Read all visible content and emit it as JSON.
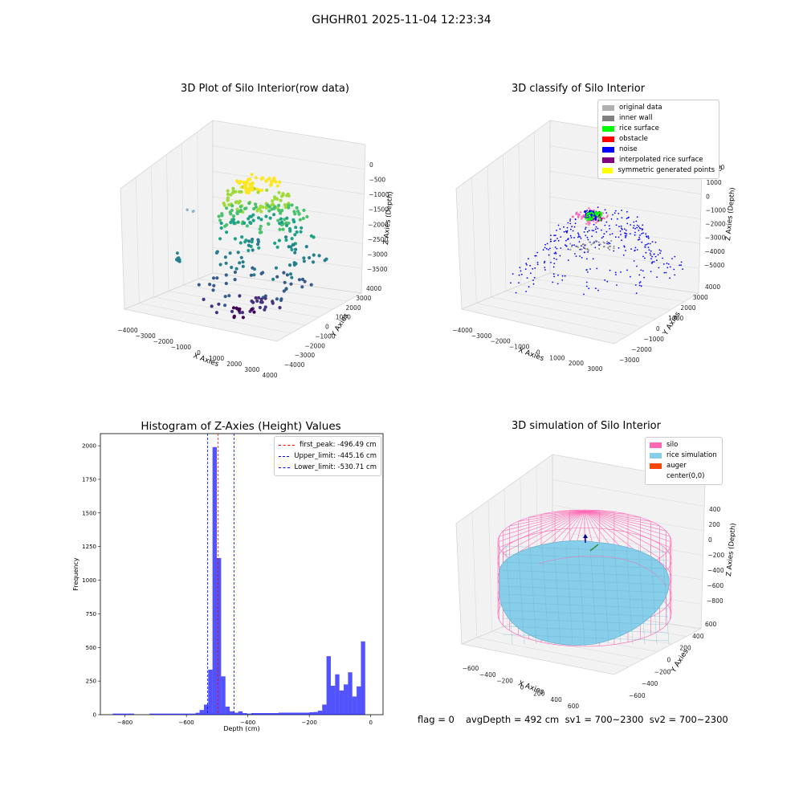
{
  "suptitle": "GHGHR01 2025-11-04 12:23:34",
  "chart_data": [
    {
      "type": "scatter",
      "title": "3D Plot of Silo Interior(row data)",
      "xlabel": "X Axies",
      "ylabel": "Y Axies",
      "zlabel": "Z Axies (Depth)",
      "x_ticks": [
        "−4000",
        "−3000",
        "−2000",
        "−1000",
        "0",
        "1000",
        "2000",
        "3000",
        "4000"
      ],
      "y_ticks": [
        "−4000",
        "−3000",
        "−2000",
        "−1000",
        "0",
        "1000",
        "2000",
        "3000",
        "4000"
      ],
      "z_ticks": [
        "0",
        "−500",
        "−1000",
        "−1500",
        "−2000",
        "−2500",
        "−3000",
        "−3500"
      ],
      "colormap": "viridis"
    },
    {
      "type": "scatter",
      "title": "3D classify of Silo Interior",
      "xlabel": "X Axies",
      "ylabel": "Y Axies",
      "zlabel": "Z Axies (Depth)",
      "x_ticks": [
        "−4000",
        "−3000",
        "−2000",
        "−1000",
        "0",
        "1000",
        "2000",
        "3000"
      ],
      "y_ticks": [
        "−3000",
        "−2000",
        "−1000",
        "0",
        "1000",
        "2000",
        "3000",
        "4000"
      ],
      "z_ticks": [
        "2000",
        "1000",
        "0",
        "−1000",
        "−2000",
        "−3000",
        "−4000",
        "−5000"
      ],
      "z_partial_tick": "000",
      "legend": [
        {
          "label": "original data",
          "color": "#b0b0b0"
        },
        {
          "label": "inner wall",
          "color": "#808080"
        },
        {
          "label": "rice surface",
          "color": "#00ff00"
        },
        {
          "label": "obstacle",
          "color": "#ff0000"
        },
        {
          "label": "noise",
          "color": "#0000ff"
        },
        {
          "label": "interpolated rice surface",
          "color": "#800080"
        },
        {
          "label": "symmetric generated points",
          "color": "#ffff00"
        }
      ]
    },
    {
      "type": "bar",
      "title": "Histogram of Z-Axies (Height) Values",
      "xlabel": "Depth (cm)",
      "ylabel": "Frequency",
      "xlim": [
        -880,
        40
      ],
      "ylim": [
        0,
        2090
      ],
      "x_ticks": [
        -800,
        -600,
        -400,
        -200,
        0
      ],
      "x_tick_labels": [
        "−800",
        "−600",
        "−400",
        "−200",
        "0"
      ],
      "y_ticks": [
        0,
        250,
        500,
        750,
        1000,
        1250,
        1500,
        1750,
        2000
      ],
      "bar_color": "#0000ff",
      "bins": [
        {
          "x0": -840,
          "x1": -770,
          "value": 8
        },
        {
          "x0": -720,
          "x1": -570,
          "value": 8
        },
        {
          "x0": -570,
          "x1": -557,
          "value": 14
        },
        {
          "x0": -557,
          "x1": -543,
          "value": 35
        },
        {
          "x0": -543,
          "x1": -529,
          "value": 75
        },
        {
          "x0": -529,
          "x1": -515,
          "value": 335
        },
        {
          "x0": -515,
          "x1": -501,
          "value": 1990
        },
        {
          "x0": -501,
          "x1": -487,
          "value": 1165
        },
        {
          "x0": -487,
          "x1": -473,
          "value": 285
        },
        {
          "x0": -473,
          "x1": -459,
          "value": 60
        },
        {
          "x0": -459,
          "x1": -445,
          "value": 25
        },
        {
          "x0": -445,
          "x1": -431,
          "value": 15
        },
        {
          "x0": -431,
          "x1": -417,
          "value": 25
        },
        {
          "x0": -417,
          "x1": -403,
          "value": 12
        },
        {
          "x0": -403,
          "x1": -389,
          "value": 8
        },
        {
          "x0": -389,
          "x1": -300,
          "value": 12
        },
        {
          "x0": -300,
          "x1": -200,
          "value": 15
        },
        {
          "x0": -200,
          "x1": -186,
          "value": 18
        },
        {
          "x0": -186,
          "x1": -172,
          "value": 20
        },
        {
          "x0": -172,
          "x1": -158,
          "value": 30
        },
        {
          "x0": -158,
          "x1": -144,
          "value": 75
        },
        {
          "x0": -144,
          "x1": -130,
          "value": 435
        },
        {
          "x0": -130,
          "x1": -116,
          "value": 215
        },
        {
          "x0": -116,
          "x1": -102,
          "value": 300
        },
        {
          "x0": -102,
          "x1": -88,
          "value": 180
        },
        {
          "x0": -88,
          "x1": -74,
          "value": 225
        },
        {
          "x0": -74,
          "x1": -60,
          "value": 315
        },
        {
          "x0": -60,
          "x1": -46,
          "value": 135
        },
        {
          "x0": -46,
          "x1": -32,
          "value": 210
        },
        {
          "x0": -32,
          "x1": -18,
          "value": 545
        }
      ],
      "vlines": [
        {
          "x": -496.49,
          "color": "#ff0000",
          "label": "first_peak: -496.49 cm"
        },
        {
          "x": -445.16,
          "color": "#0000ff",
          "label": "Upper_limit: -445.16 cm"
        },
        {
          "x": -530.71,
          "color": "#0000ff",
          "label": "Lower_limit: -530.71 cm"
        }
      ],
      "legend_position": "top-right"
    },
    {
      "type": "surface",
      "title": "3D simulation of Silo Interior",
      "xlabel": "X Axies",
      "ylabel": "Y Axies",
      "zlabel": "Z Axies (Depth)",
      "x_ticks": [
        "−600",
        "−400",
        "−200",
        "0",
        "200",
        "400",
        "600"
      ],
      "y_ticks": [
        "−600",
        "−400",
        "−200",
        "0",
        "200",
        "400",
        "600"
      ],
      "z_ticks": [
        "400",
        "200",
        "0",
        "−200",
        "−400",
        "−600",
        "−800"
      ],
      "legend": [
        {
          "label": "silo",
          "color": "#ff69b4"
        },
        {
          "label": "rice simulation",
          "color": "#87ceeb"
        },
        {
          "label": "auger",
          "color": "#ff4500"
        },
        {
          "label": "center(0,0)",
          "color": ""
        }
      ]
    }
  ],
  "footer": {
    "flag": "flag = 0",
    "stats": "avgDepth = 492 cm  sv1 = 700~2300  sv2 = 700~2300"
  }
}
